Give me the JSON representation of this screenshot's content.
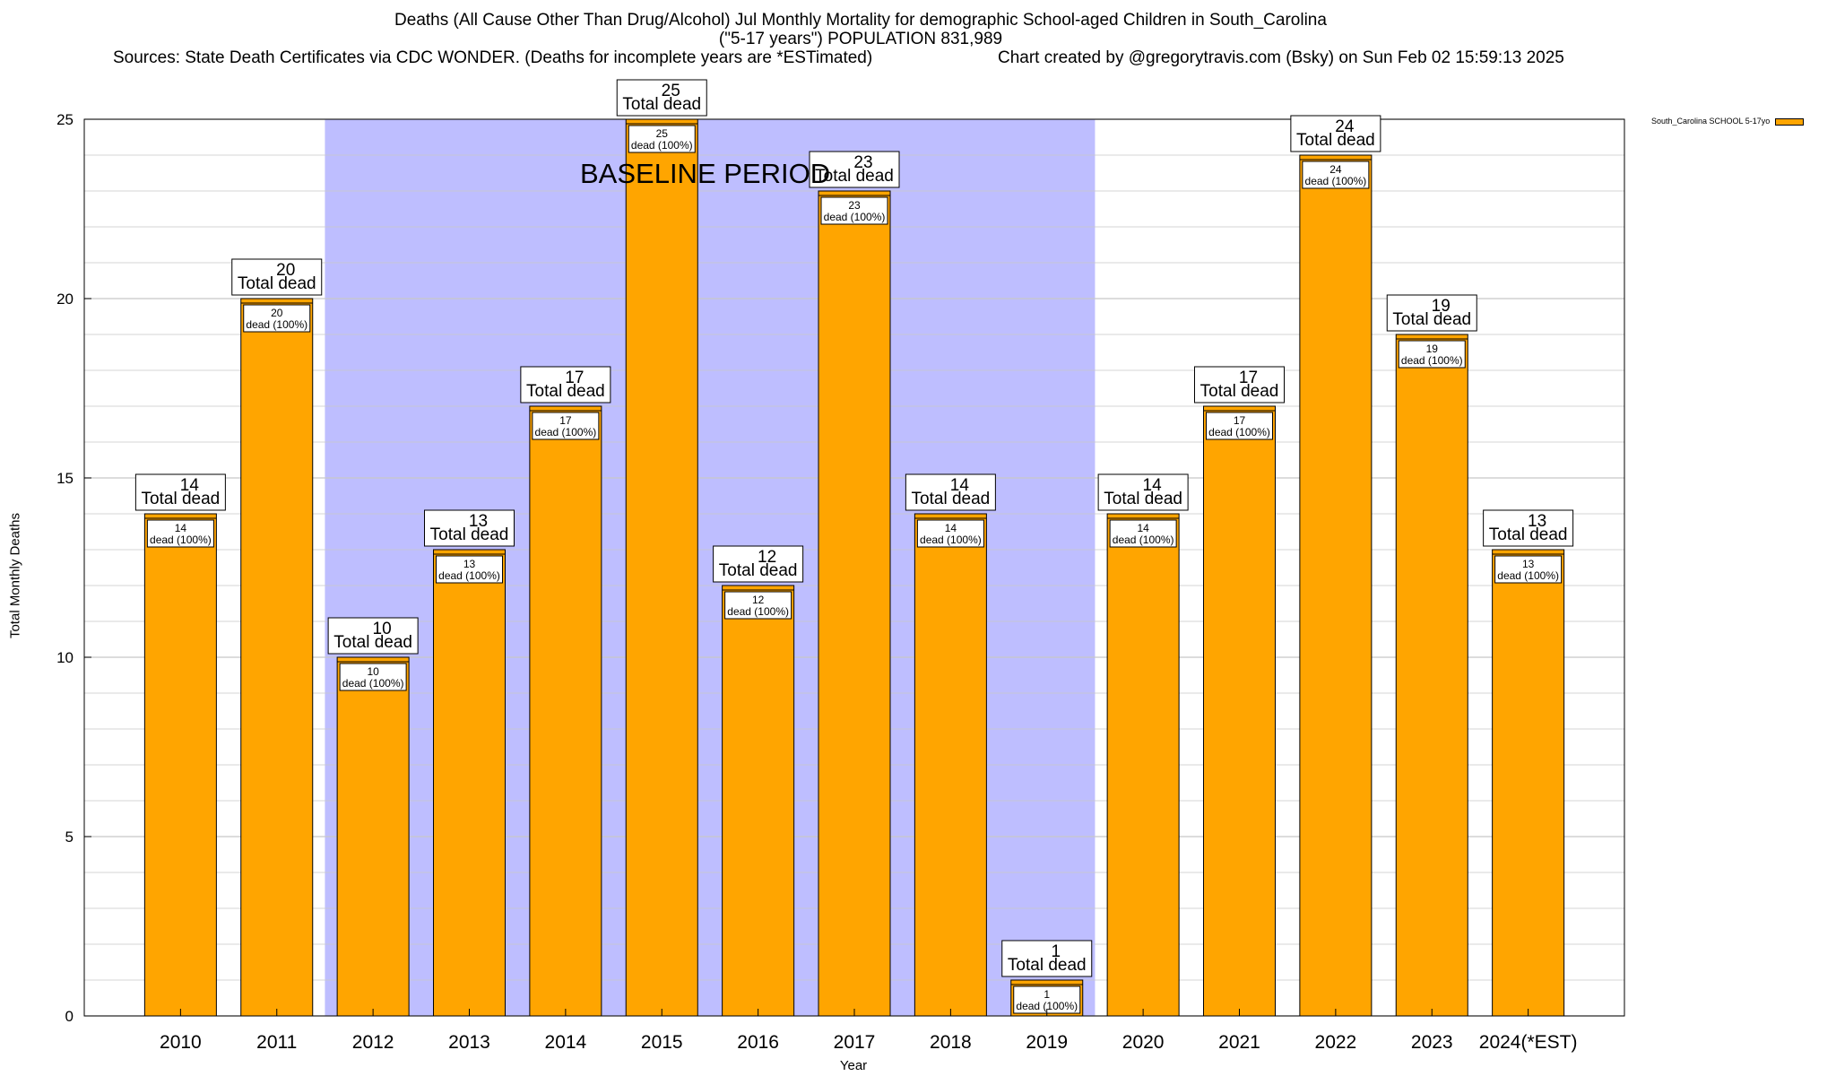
{
  "title": {
    "line1": "Deaths (All Cause Other Than Drug/Alcohol) Jul Monthly Mortality for demographic School-aged Children in South_Carolina",
    "line2": "(\"5-17 years\") POPULATION 831,989",
    "sources": "Sources: State Death Certificates via CDC WONDER. (Deaths for incomplete years are *ESTimated)",
    "credit": "Chart created by @gregorytravis.com (Bsky) on Sun Feb 02 15:59:13 2025"
  },
  "legend": {
    "label": "South_Carolina SCHOOL 5-17yo"
  },
  "baseline": {
    "label": "BASELINE PERIOD"
  },
  "colors": {
    "bar": "#FFA500",
    "baseline": "#BEBEFF",
    "grid": "#c8c8c8"
  },
  "chart_data": {
    "type": "bar",
    "categories": [
      "2010",
      "2011",
      "2012",
      "2013",
      "2014",
      "2015",
      "2016",
      "2017",
      "2018",
      "2019",
      "2020",
      "2021",
      "2022",
      "2023",
      "2024(*EST)"
    ],
    "series": [
      {
        "name": "South_Carolina SCHOOL 5-17yo",
        "values": [
          14,
          20,
          10,
          13,
          17,
          25,
          12,
          23,
          14,
          1,
          14,
          17,
          24,
          19,
          13
        ]
      }
    ],
    "top_label": "Total dead",
    "inner_label": "dead (100%)",
    "baseline_range": [
      "2012",
      "2019"
    ],
    "xlabel": "Year",
    "ylabel": "Total Monthly Deaths",
    "ylim": [
      0,
      25
    ],
    "yticks": [
      0,
      5,
      10,
      15,
      20,
      25
    ],
    "grid": true,
    "legend_position": "top-right"
  }
}
